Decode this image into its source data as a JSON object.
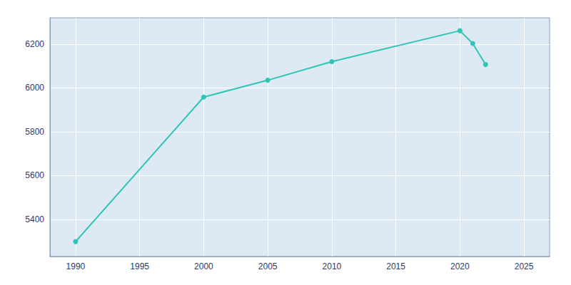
{
  "chart_data": {
    "type": "line",
    "x": [
      1990,
      2000,
      2005,
      2010,
      2020,
      2021,
      2022
    ],
    "values": [
      5298,
      5958,
      6035,
      6120,
      6261,
      6203,
      6107
    ],
    "color": "#2EC4B6",
    "marker": "circle",
    "xlim": [
      1988,
      2027
    ],
    "ylim": [
      5230,
      6320
    ],
    "xticks": [
      1990,
      1995,
      2000,
      2005,
      2010,
      2015,
      2020,
      2025
    ],
    "yticks": [
      5400,
      5600,
      5800,
      6000,
      6200
    ],
    "grid": true
  }
}
